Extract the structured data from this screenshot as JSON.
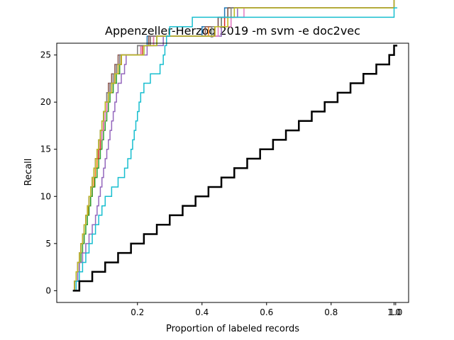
{
  "chart_data": {
    "type": "line",
    "title": "Appenzeller-Herzog 2019 -m svm -e doc2vec",
    "xlabel": "Proportion of labeled records",
    "ylabel": "Recall",
    "xlim": [
      -0.05,
      1.04
    ],
    "ylim": [
      -1.25,
      26.25
    ],
    "x_ticks": [
      0.2,
      0.4,
      0.6,
      0.8,
      1.0
    ],
    "x_tick_labels": [
      "0.2",
      "0.4",
      "0.6",
      "0.8",
      "1.0"
    ],
    "extra_x_tick_labels": [
      {
        "x": 0.995,
        "label": "1.0"
      }
    ],
    "y_ticks": [
      0,
      5,
      10,
      15,
      20,
      25
    ],
    "y_tick_labels": [
      "0",
      "5",
      "10",
      "15",
      "20",
      "25"
    ],
    "grid": false,
    "legend": "none",
    "series": [
      {
        "color": "#1f77b4",
        "step_x": [
          0.0,
          0.005,
          0.01,
          0.015,
          0.02,
          0.025,
          0.03,
          0.035,
          0.04,
          0.045,
          0.05,
          0.055,
          0.06,
          0.065,
          0.07,
          0.075,
          0.08,
          0.085,
          0.09,
          0.095,
          0.1,
          0.11,
          0.12,
          0.13,
          0.14,
          0.145,
          0.2,
          0.23,
          0.4,
          0.45,
          0.47,
          0.995
        ]
      },
      {
        "color": "#ff7f0e",
        "step_x": [
          0.0,
          0.005,
          0.01,
          0.015,
          0.02,
          0.025,
          0.03,
          0.035,
          0.04,
          0.048,
          0.055,
          0.06,
          0.065,
          0.07,
          0.075,
          0.08,
          0.085,
          0.09,
          0.095,
          0.1,
          0.105,
          0.11,
          0.12,
          0.13,
          0.14,
          0.15,
          0.21,
          0.25,
          0.42,
          0.48,
          0.49,
          0.995
        ]
      },
      {
        "color": "#2ca02c",
        "step_x": [
          0.0,
          0.005,
          0.01,
          0.02,
          0.025,
          0.03,
          0.035,
          0.04,
          0.045,
          0.05,
          0.055,
          0.06,
          0.068,
          0.075,
          0.08,
          0.085,
          0.09,
          0.095,
          0.1,
          0.105,
          0.11,
          0.115,
          0.125,
          0.135,
          0.145,
          0.15,
          0.22,
          0.26,
          0.43,
          0.46,
          0.48,
          0.995
        ]
      },
      {
        "color": "#d62728",
        "step_x": [
          0.0,
          0.005,
          0.01,
          0.015,
          0.02,
          0.025,
          0.03,
          0.035,
          0.04,
          0.045,
          0.05,
          0.055,
          0.06,
          0.065,
          0.07,
          0.08,
          0.085,
          0.09,
          0.095,
          0.1,
          0.105,
          0.11,
          0.12,
          0.13,
          0.14,
          0.15,
          0.215,
          0.24,
          0.44,
          0.47,
          0.5,
          0.995
        ]
      },
      {
        "color": "#9467bd",
        "step_x": [
          0.0,
          0.01,
          0.015,
          0.02,
          0.03,
          0.04,
          0.05,
          0.06,
          0.07,
          0.075,
          0.08,
          0.085,
          0.09,
          0.095,
          0.1,
          0.105,
          0.11,
          0.115,
          0.12,
          0.125,
          0.13,
          0.135,
          0.14,
          0.15,
          0.16,
          0.165,
          0.23,
          0.28,
          0.46,
          0.49,
          0.51,
          0.995
        ]
      },
      {
        "color": "#8c564b",
        "step_x": [
          0.0,
          0.005,
          0.01,
          0.015,
          0.02,
          0.025,
          0.03,
          0.035,
          0.04,
          0.045,
          0.05,
          0.055,
          0.06,
          0.065,
          0.07,
          0.075,
          0.08,
          0.085,
          0.09,
          0.095,
          0.1,
          0.105,
          0.11,
          0.12,
          0.13,
          0.14,
          0.2,
          0.235,
          0.41,
          0.45,
          0.48,
          0.995
        ]
      },
      {
        "color": "#e377c2",
        "step_x": [
          0.0,
          0.005,
          0.01,
          0.015,
          0.02,
          0.025,
          0.03,
          0.035,
          0.04,
          0.045,
          0.05,
          0.055,
          0.06,
          0.065,
          0.07,
          0.075,
          0.08,
          0.09,
          0.095,
          0.1,
          0.105,
          0.11,
          0.115,
          0.125,
          0.135,
          0.145,
          0.21,
          0.25,
          0.45,
          0.49,
          0.53,
          0.995
        ]
      },
      {
        "color": "#7f7f7f",
        "step_x": [
          0.0,
          0.005,
          0.01,
          0.015,
          0.02,
          0.025,
          0.03,
          0.035,
          0.04,
          0.045,
          0.05,
          0.055,
          0.06,
          0.065,
          0.07,
          0.075,
          0.08,
          0.085,
          0.09,
          0.095,
          0.1,
          0.105,
          0.115,
          0.125,
          0.135,
          0.145,
          0.2,
          0.24,
          0.43,
          0.46,
          0.49,
          0.995
        ]
      },
      {
        "color": "#bcbd22",
        "step_x": [
          0.0,
          0.005,
          0.01,
          0.015,
          0.02,
          0.025,
          0.03,
          0.035,
          0.04,
          0.045,
          0.05,
          0.055,
          0.06,
          0.065,
          0.07,
          0.075,
          0.08,
          0.085,
          0.09,
          0.095,
          0.1,
          0.11,
          0.12,
          0.13,
          0.14,
          0.15,
          0.22,
          0.26,
          0.44,
          0.48,
          0.5,
          0.995
        ]
      },
      {
        "color": "#17becf",
        "step_x": [
          0.0,
          0.01,
          0.02,
          0.03,
          0.04,
          0.05,
          0.06,
          0.07,
          0.08,
          0.09,
          0.1,
          0.12,
          0.14,
          0.16,
          0.17,
          0.18,
          0.185,
          0.19,
          0.195,
          0.2,
          0.205,
          0.21,
          0.22,
          0.24,
          0.27,
          0.28,
          0.285,
          0.29,
          0.3,
          0.37,
          0.995
        ]
      },
      {
        "color": "#000000",
        "width": 2.5,
        "step_x": [
          0.0,
          0.02,
          0.06,
          0.1,
          0.14,
          0.18,
          0.22,
          0.26,
          0.3,
          0.34,
          0.38,
          0.42,
          0.46,
          0.5,
          0.54,
          0.58,
          0.62,
          0.66,
          0.7,
          0.74,
          0.78,
          0.82,
          0.86,
          0.9,
          0.94,
          0.98,
          0.995
        ]
      }
    ]
  }
}
